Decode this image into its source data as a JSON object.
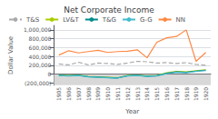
{
  "chart_data": {
    "type": "line",
    "title": "Net Corporate Income",
    "x_label": "Year",
    "y_label": "Dollar Value",
    "x": [
      1905,
      1906,
      1907,
      1908,
      1909,
      1910,
      1911,
      1912,
      1913,
      1914,
      1915,
      1916,
      1917,
      1918,
      1919,
      1920
    ],
    "series": [
      {
        "name": "T&S",
        "color": "#aaaaaa",
        "line_style": "dashed",
        "values": [
          230000,
          210000,
          270000,
          210000,
          250000,
          240000,
          220000,
          250000,
          290000,
          280000,
          250000,
          260000,
          240000,
          260000,
          220000,
          200000
        ]
      },
      {
        "name": "LV&T",
        "color": "#aacc00",
        "line_style": "solid",
        "values": [
          -20000,
          -30000,
          -20000,
          -50000,
          -60000,
          -70000,
          -80000,
          -30000,
          -20000,
          -40000,
          -30000,
          30000,
          60000,
          50000,
          80000,
          100000
        ]
      },
      {
        "name": "T&G",
        "color": "#008b8b",
        "line_style": "solid",
        "values": [
          -25000,
          -35000,
          -25000,
          -55000,
          -65000,
          -75000,
          -85000,
          -35000,
          -25000,
          -45000,
          -35000,
          20000,
          50000,
          40000,
          70000,
          90000
        ]
      },
      {
        "name": "G-G",
        "color": "#44bbcc",
        "line_style": "solid",
        "values": [
          -30000,
          -40000,
          -30000,
          -60000,
          -70000,
          -80000,
          -90000,
          -40000,
          -30000,
          -50000,
          -40000,
          10000,
          40000,
          30000,
          60000,
          80000
        ]
      },
      {
        "name": "NN",
        "color": "#ff8844",
        "line_style": "solid",
        "values": [
          430000,
          530000,
          480000,
          510000,
          540000,
          490000,
          510000,
          520000,
          550000,
          370000,
          720000,
          820000,
          850000,
          1000000,
          290000,
          490000
        ]
      }
    ],
    "xlim": [
      1904.5,
      1920.5
    ],
    "xticks": [
      1905,
      1906,
      1907,
      1908,
      1909,
      1910,
      1911,
      1912,
      1913,
      1914,
      1915,
      1916,
      1917,
      1918,
      1919,
      1920
    ],
    "ylim": [
      -250000,
      1100000
    ],
    "yticks": [
      {
        "value": 1000000,
        "label": "1,000,000"
      },
      {
        "value": 800000,
        "label": "800,000"
      },
      {
        "value": 600000,
        "label": "600,000"
      },
      {
        "value": 400000,
        "label": "400,000"
      },
      {
        "value": 200000,
        "label": "200,000"
      },
      0,
      {
        "value": -200000,
        "label": "(200,000)"
      }
    ],
    "shaded": {
      "ylim": [
        -250000,
        0
      ],
      "color": "#d8d8d8"
    },
    "grid": true,
    "legend": "upper left"
  }
}
